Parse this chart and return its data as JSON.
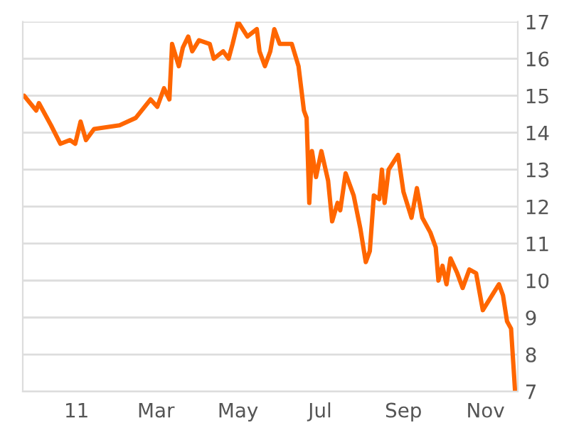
{
  "chart_data": {
    "type": "line",
    "x": [
      "2010-11-23",
      "2010-12-02",
      "2010-12-04",
      "2010-12-13",
      "2010-12-20",
      "2010-12-27",
      "2010-12-31",
      "2011-01-04",
      "2011-01-08",
      "2011-01-14",
      "2011-02-02",
      "2011-02-14",
      "2011-02-25",
      "2011-03-02",
      "2011-03-07",
      "2011-03-11",
      "2011-03-13",
      "2011-03-18",
      "2011-03-21",
      "2011-03-25",
      "2011-03-28",
      "2011-04-02",
      "2011-04-10",
      "2011-04-13",
      "2011-04-20",
      "2011-04-24",
      "2011-04-27",
      "2011-05-01",
      "2011-05-08",
      "2011-05-15",
      "2011-05-17",
      "2011-05-21",
      "2011-05-25",
      "2011-05-28",
      "2011-06-01",
      "2011-06-05",
      "2011-06-10",
      "2011-06-15",
      "2011-06-19",
      "2011-06-21",
      "2011-06-23",
      "2011-06-25",
      "2011-06-28",
      "2011-07-02",
      "2011-07-07",
      "2011-07-10",
      "2011-07-14",
      "2011-07-16",
      "2011-07-20",
      "2011-07-26",
      "2011-07-31",
      "2011-08-04",
      "2011-08-07",
      "2011-08-10",
      "2011-08-14",
      "2011-08-16",
      "2011-08-18",
      "2011-08-21",
      "2011-08-28",
      "2011-09-01",
      "2011-09-07",
      "2011-09-11",
      "2011-09-15",
      "2011-09-21",
      "2011-09-25",
      "2011-09-27",
      "2011-09-30",
      "2011-10-03",
      "2011-10-06",
      "2011-10-11",
      "2011-10-15",
      "2011-10-20",
      "2011-10-25",
      "2011-10-30",
      "2011-11-11",
      "2011-11-14",
      "2011-11-17",
      "2011-11-20",
      "2011-11-23"
    ],
    "series": [
      {
        "color": "#ff6600",
        "values": [
          15.0,
          14.6,
          14.8,
          14.2,
          13.7,
          13.8,
          13.7,
          14.3,
          13.8,
          14.1,
          14.2,
          14.4,
          14.9,
          14.7,
          15.2,
          14.9,
          16.4,
          15.8,
          16.3,
          16.6,
          16.2,
          16.5,
          16.4,
          16.0,
          16.2,
          16.0,
          16.4,
          17.0,
          16.6,
          16.8,
          16.2,
          15.8,
          16.2,
          16.8,
          16.4,
          16.4,
          16.4,
          15.8,
          14.6,
          14.4,
          12.1,
          13.5,
          12.8,
          13.5,
          12.7,
          11.6,
          12.1,
          11.9,
          12.9,
          12.3,
          11.4,
          10.5,
          10.8,
          12.3,
          12.2,
          13.0,
          12.1,
          13.0,
          13.4,
          12.4,
          11.7,
          12.5,
          11.7,
          11.3,
          10.9,
          10.0,
          10.4,
          9.9,
          10.6,
          10.2,
          9.8,
          10.3,
          10.2,
          9.2,
          9.9,
          9.6,
          8.9,
          8.7,
          7.0
        ]
      }
    ],
    "xlim": [
      "2010-11-22",
      "2011-11-25"
    ],
    "xticks": [
      {
        "value": "2011-01-01",
        "label": "11"
      },
      {
        "value": "2011-03-01",
        "label": "Mar"
      },
      {
        "value": "2011-05-01",
        "label": "May"
      },
      {
        "value": "2011-07-01",
        "label": "Jul"
      },
      {
        "value": "2011-09-01",
        "label": "Sep"
      },
      {
        "value": "2011-11-01",
        "label": "Nov"
      }
    ],
    "ylim": [
      7,
      17
    ],
    "yticks": [
      7,
      8,
      9,
      10,
      11,
      12,
      13,
      14,
      15,
      16,
      17
    ],
    "grid": "y",
    "line_style": "solid"
  }
}
